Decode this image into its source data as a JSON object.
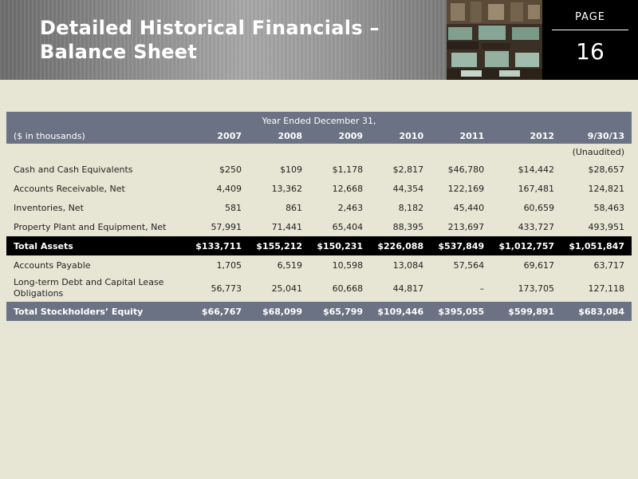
{
  "header": {
    "title": "Detailed Historical Financials – Balance Sheet",
    "page_label": "PAGE",
    "page_number": "16"
  },
  "table": {
    "period_header": "Year Ended December 31,",
    "units_label": "($ in thousands)",
    "columns": [
      "2007",
      "2008",
      "2009",
      "2010",
      "2011",
      "2012",
      "9/30/13"
    ],
    "unaudited_note": "(Unaudited)",
    "rows": [
      {
        "label": "Cash and Cash Equivalents",
        "values": [
          "$250",
          "$109",
          "$1,178",
          "$2,817",
          "$46,780",
          "$14,442",
          "$28,657"
        ]
      },
      {
        "label": "Accounts Receivable, Net",
        "values": [
          "4,409",
          "13,362",
          "12,668",
          "44,354",
          "122,169",
          "167,481",
          "124,821"
        ]
      },
      {
        "label": "Inventories, Net",
        "values": [
          "581",
          "861",
          "2,463",
          "8,182",
          "45,440",
          "60,659",
          "58,463"
        ]
      },
      {
        "label": "Property Plant and Equipment, Net",
        "values": [
          "57,991",
          "71,441",
          "65,404",
          "88,395",
          "213,697",
          "433,727",
          "493,951"
        ]
      },
      {
        "label": "Total Assets",
        "values": [
          "$133,711",
          "$155,212",
          "$150,231",
          "$226,088",
          "$537,849",
          "$1,012,757",
          "$1,051,847"
        ]
      },
      {
        "label": "Accounts Payable",
        "values": [
          "1,705",
          "6,519",
          "10,598",
          "13,084",
          "57,564",
          "69,617",
          "63,717"
        ]
      },
      {
        "label": "Long-term Debt and Capital Lease Obligations",
        "values": [
          "56,773",
          "25,041",
          "60,668",
          "44,817",
          "–",
          "173,705",
          "127,118"
        ]
      },
      {
        "label": "Total Stockholders’ Equity",
        "values": [
          "$66,767",
          "$68,099",
          "$65,799",
          "$109,446",
          "$395,055",
          "$599,891",
          "$683,084"
        ]
      }
    ]
  },
  "colors": {
    "header_band": "#6b7283",
    "highlight_row": "#000000",
    "background": "#e7e6d5"
  }
}
